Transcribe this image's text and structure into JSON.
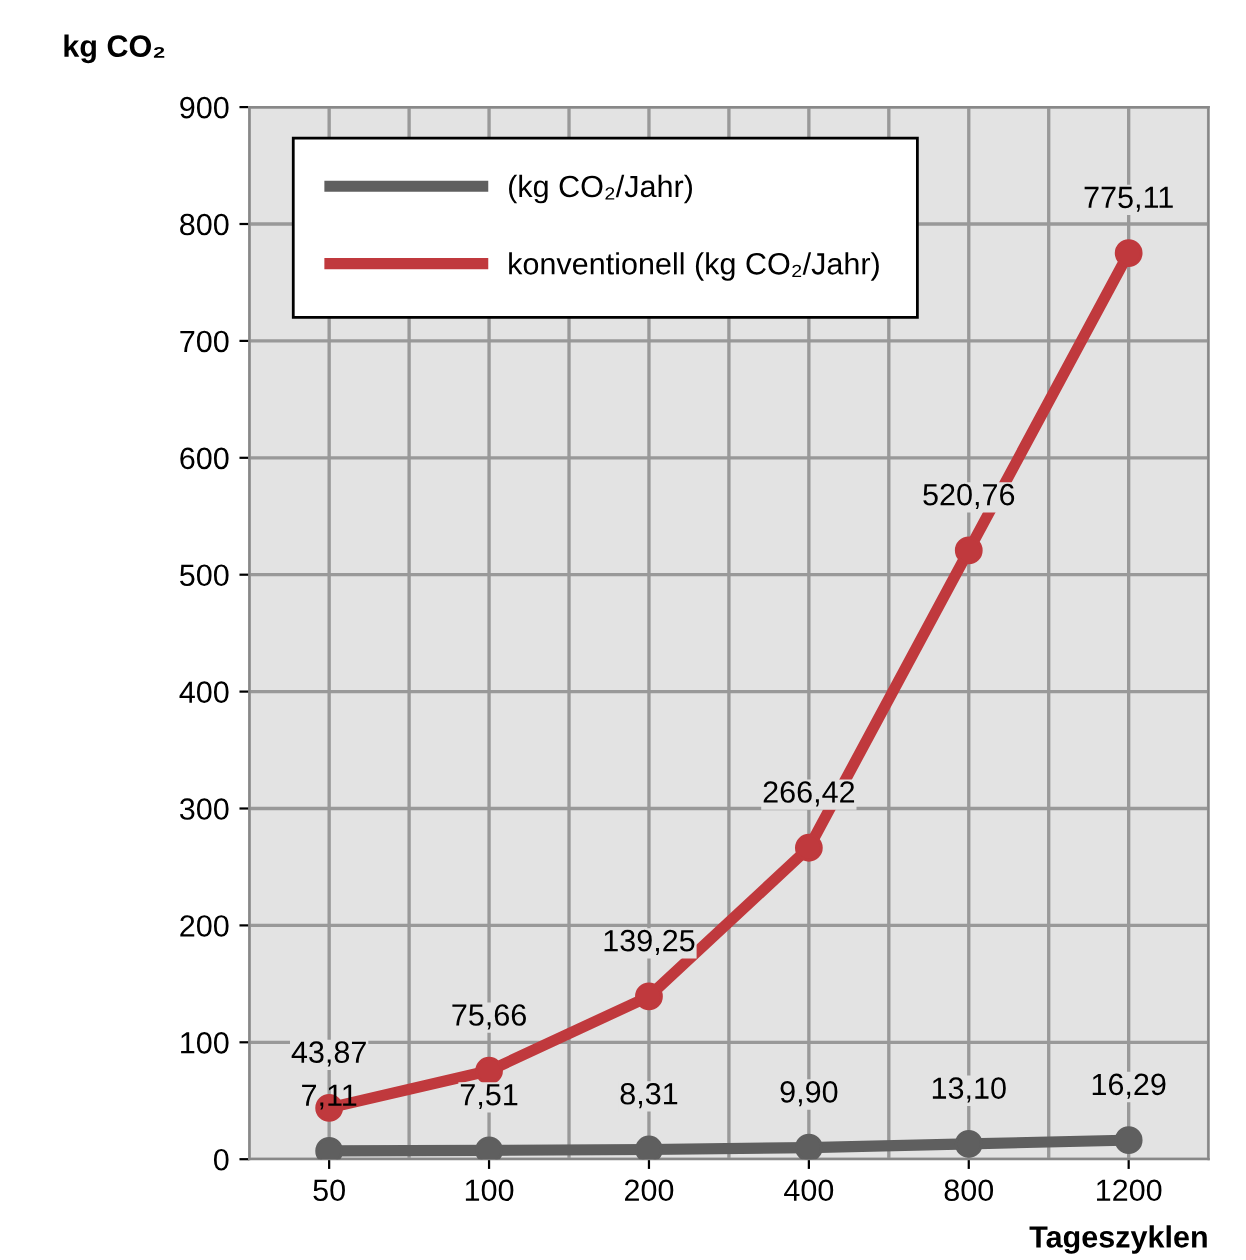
{
  "chart_data": {
    "type": "line",
    "ylabel": "kg CO₂",
    "xlabel": "Tageszyklen",
    "categories": [
      "50",
      "100",
      "200",
      "400",
      "800",
      "1200"
    ],
    "series": [
      {
        "name": "(kg CO₂/Jahr)",
        "color": "#5f5f5f",
        "values": [
          7.11,
          7.51,
          8.31,
          9.9,
          13.1,
          16.29
        ],
        "value_labels": [
          "7,11",
          "7,51",
          "8,31",
          "9,90",
          "13,10",
          "16,29"
        ]
      },
      {
        "name": "konventionell (kg CO₂/Jahr)",
        "color": "#c0393d",
        "values": [
          43.87,
          75.66,
          139.25,
          266.42,
          520.76,
          775.11
        ],
        "value_labels": [
          "43,87",
          "75,66",
          "139,25",
          "266,42",
          "520,76",
          "775,11"
        ]
      }
    ],
    "ylim": [
      0,
      900
    ],
    "yticks": [
      0,
      100,
      200,
      300,
      400,
      500,
      600,
      700,
      800,
      900
    ],
    "grid": true,
    "legend": "top left",
    "marker": "circle",
    "line_style": "solid"
  }
}
